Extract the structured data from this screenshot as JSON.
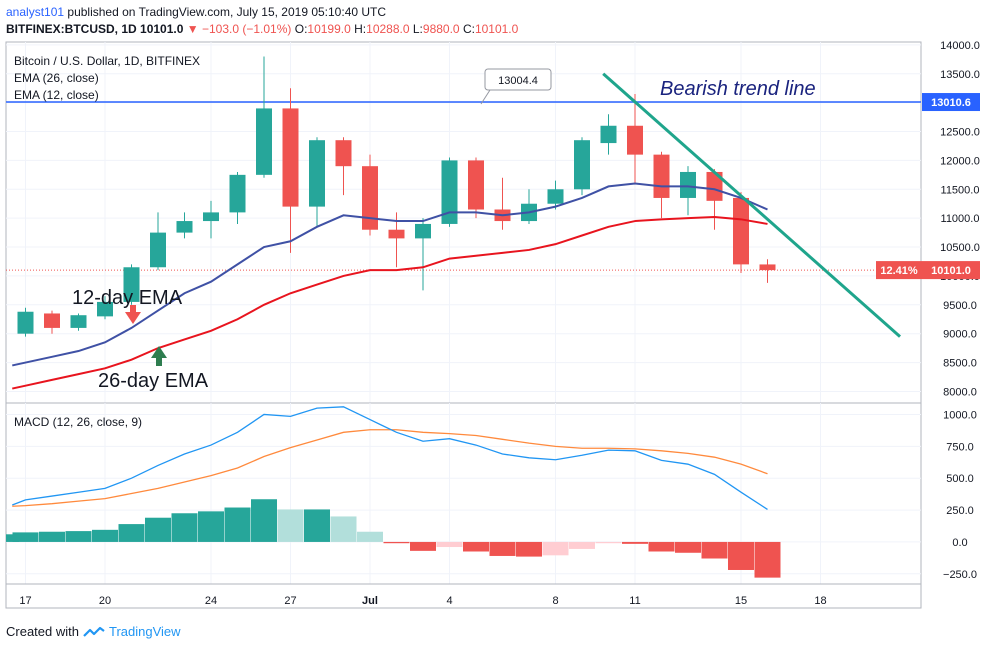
{
  "header": {
    "author": "analyst101",
    "published_text": "published on TradingView.com, July 15, 2019 05:10:40 UTC",
    "symbol": "BITFINEX:BTCUSD, 1D",
    "price": "10101.0",
    "change": "−103.0 (−1.01%)",
    "open": "10199.0",
    "high": "10288.0",
    "low": "9880.0",
    "close": "10101.0"
  },
  "legend": {
    "line1": "Bitcoin / U.S. Dollar, 1D, BITFINEX",
    "line2": "EMA (26, close)",
    "line3": "EMA (12, close)"
  },
  "macd_legend": "MACD (12, 26, close, 9)",
  "annotations": {
    "trend": "Bearish trend line",
    "ema12": "12-day EMA",
    "ema26": "26-day EMA",
    "callout": "13004.4",
    "hline_label": "13010.6",
    "pct_badge": "12.41%",
    "price_badge": "10101.0"
  },
  "footer": {
    "created_with": "Created with",
    "brand": "TradingView"
  },
  "colors": {
    "up": "#26a69a",
    "down": "#ef5350",
    "ema12": "#3f51a5",
    "ema26": "#e8141e",
    "macd": "#2196f3",
    "signal": "#ff8a3d",
    "trend": "#1fa58c",
    "hline": "#2962ff"
  },
  "chart_data": [
    {
      "type": "candlestick",
      "title": "Bitcoin / U.S. Dollar, 1D, BITFINEX",
      "x_ticks": [
        {
          "x": 17,
          "label": "17"
        },
        {
          "x": 20,
          "label": "20"
        },
        {
          "x": 24,
          "label": "24"
        },
        {
          "x": 27,
          "label": "27"
        },
        {
          "x": 30,
          "label": "Jul"
        },
        {
          "x": 33,
          "label": "4"
        },
        {
          "x": 37,
          "label": "8"
        },
        {
          "x": 40,
          "label": "11"
        },
        {
          "x": 44,
          "label": "15"
        },
        {
          "x": 47,
          "label": "18"
        }
      ],
      "y_ticks": [
        8000,
        8500,
        9000,
        9500,
        10000,
        10500,
        11000,
        11500,
        12000,
        12500,
        13000,
        13500,
        14000
      ],
      "ylim": [
        7800,
        14050
      ],
      "candles": [
        {
          "x": 17,
          "o": 9000,
          "h": 9450,
          "l": 8950,
          "c": 9380
        },
        {
          "x": 18,
          "o": 9350,
          "h": 9400,
          "l": 9000,
          "c": 9100
        },
        {
          "x": 19,
          "o": 9100,
          "h": 9350,
          "l": 9050,
          "c": 9320
        },
        {
          "x": 20,
          "o": 9300,
          "h": 9650,
          "l": 9250,
          "c": 9550
        },
        {
          "x": 21,
          "o": 9550,
          "h": 10200,
          "l": 9500,
          "c": 10150
        },
        {
          "x": 22,
          "o": 10150,
          "h": 11100,
          "l": 10100,
          "c": 10750
        },
        {
          "x": 23,
          "o": 10750,
          "h": 11100,
          "l": 10650,
          "c": 10950
        },
        {
          "x": 24,
          "o": 10950,
          "h": 11300,
          "l": 10650,
          "c": 11100
        },
        {
          "x": 25,
          "o": 11100,
          "h": 11800,
          "l": 10900,
          "c": 11750
        },
        {
          "x": 26,
          "o": 11750,
          "h": 13800,
          "l": 11700,
          "c": 12900
        },
        {
          "x": 27,
          "o": 12900,
          "h": 13250,
          "l": 10400,
          "c": 11200
        },
        {
          "x": 28,
          "o": 11200,
          "h": 12400,
          "l": 10850,
          "c": 12350
        },
        {
          "x": 29,
          "o": 12350,
          "h": 12400,
          "l": 11400,
          "c": 11900
        },
        {
          "x": 30,
          "o": 11900,
          "h": 12100,
          "l": 10700,
          "c": 10800
        },
        {
          "x": 31,
          "o": 10800,
          "h": 11100,
          "l": 10150,
          "c": 10650
        },
        {
          "x": 32,
          "o": 10650,
          "h": 11000,
          "l": 9750,
          "c": 10900
        },
        {
          "x": 33,
          "o": 10900,
          "h": 12050,
          "l": 10850,
          "c": 12000
        },
        {
          "x": 34,
          "o": 12000,
          "h": 12050,
          "l": 11000,
          "c": 11150
        },
        {
          "x": 35,
          "o": 11150,
          "h": 11700,
          "l": 10800,
          "c": 10950
        },
        {
          "x": 36,
          "o": 10950,
          "h": 11500,
          "l": 10900,
          "c": 11250
        },
        {
          "x": 37,
          "o": 11250,
          "h": 11650,
          "l": 11150,
          "c": 11500
        },
        {
          "x": 38,
          "o": 11500,
          "h": 12400,
          "l": 11400,
          "c": 12350
        },
        {
          "x": 39,
          "o": 12300,
          "h": 12800,
          "l": 12100,
          "c": 12600
        },
        {
          "x": 40,
          "o": 12600,
          "h": 13150,
          "l": 11600,
          "c": 12100
        },
        {
          "x": 41,
          "o": 12100,
          "h": 12150,
          "l": 11000,
          "c": 11350
        },
        {
          "x": 42,
          "o": 11350,
          "h": 11900,
          "l": 11050,
          "c": 11800
        },
        {
          "x": 43,
          "o": 11800,
          "h": 11850,
          "l": 10800,
          "c": 11300
        },
        {
          "x": 44,
          "o": 11350,
          "h": 11450,
          "l": 10050,
          "c": 10200
        },
        {
          "x": 45,
          "o": 10199,
          "h": 10288,
          "l": 9880,
          "c": 10101
        }
      ],
      "ema12": [
        {
          "x": 16.5,
          "y": 8450
        },
        {
          "x": 17,
          "y": 8500
        },
        {
          "x": 18,
          "y": 8600
        },
        {
          "x": 19,
          "y": 8700
        },
        {
          "x": 20,
          "y": 8850
        },
        {
          "x": 21,
          "y": 9100
        },
        {
          "x": 22,
          "y": 9400
        },
        {
          "x": 23,
          "y": 9700
        },
        {
          "x": 24,
          "y": 9900
        },
        {
          "x": 25,
          "y": 10200
        },
        {
          "x": 26,
          "y": 10500
        },
        {
          "x": 27,
          "y": 10600
        },
        {
          "x": 28,
          "y": 10850
        },
        {
          "x": 29,
          "y": 11050
        },
        {
          "x": 30,
          "y": 11000
        },
        {
          "x": 31,
          "y": 10950
        },
        {
          "x": 32,
          "y": 10950
        },
        {
          "x": 33,
          "y": 11100
        },
        {
          "x": 34,
          "y": 11100
        },
        {
          "x": 35,
          "y": 11050
        },
        {
          "x": 36,
          "y": 11100
        },
        {
          "x": 37,
          "y": 11200
        },
        {
          "x": 38,
          "y": 11350
        },
        {
          "x": 39,
          "y": 11550
        },
        {
          "x": 40,
          "y": 11600
        },
        {
          "x": 41,
          "y": 11550
        },
        {
          "x": 42,
          "y": 11550
        },
        {
          "x": 43,
          "y": 11500
        },
        {
          "x": 44,
          "y": 11350
        },
        {
          "x": 45,
          "y": 11150
        }
      ],
      "ema26": [
        {
          "x": 16.5,
          "y": 8050
        },
        {
          "x": 17,
          "y": 8100
        },
        {
          "x": 18,
          "y": 8200
        },
        {
          "x": 19,
          "y": 8300
        },
        {
          "x": 20,
          "y": 8400
        },
        {
          "x": 21,
          "y": 8550
        },
        {
          "x": 22,
          "y": 8750
        },
        {
          "x": 23,
          "y": 8900
        },
        {
          "x": 24,
          "y": 9050
        },
        {
          "x": 25,
          "y": 9250
        },
        {
          "x": 26,
          "y": 9500
        },
        {
          "x": 27,
          "y": 9700
        },
        {
          "x": 28,
          "y": 9850
        },
        {
          "x": 29,
          "y": 10000
        },
        {
          "x": 30,
          "y": 10100
        },
        {
          "x": 31,
          "y": 10100
        },
        {
          "x": 32,
          "y": 10150
        },
        {
          "x": 33,
          "y": 10300
        },
        {
          "x": 34,
          "y": 10350
        },
        {
          "x": 35,
          "y": 10400
        },
        {
          "x": 36,
          "y": 10450
        },
        {
          "x": 37,
          "y": 10550
        },
        {
          "x": 38,
          "y": 10700
        },
        {
          "x": 39,
          "y": 10850
        },
        {
          "x": 40,
          "y": 10950
        },
        {
          "x": 41,
          "y": 10980
        },
        {
          "x": 42,
          "y": 11000
        },
        {
          "x": 43,
          "y": 11020
        },
        {
          "x": 44,
          "y": 10980
        },
        {
          "x": 45,
          "y": 10900
        }
      ],
      "hline": 13010.6,
      "trend_line": [
        {
          "x": 38.8,
          "y": 13500
        },
        {
          "x": 50,
          "y": 8950
        }
      ]
    },
    {
      "type": "macd",
      "title": "MACD (12, 26, close, 9)",
      "y_ticks": [
        -250,
        0,
        250,
        500,
        750,
        1000
      ],
      "ylim": [
        -330,
        1090
      ],
      "macd": [
        {
          "x": 16.5,
          "y": 290
        },
        {
          "x": 17,
          "y": 330
        },
        {
          "x": 18,
          "y": 360
        },
        {
          "x": 19,
          "y": 390
        },
        {
          "x": 20,
          "y": 420
        },
        {
          "x": 21,
          "y": 500
        },
        {
          "x": 22,
          "y": 600
        },
        {
          "x": 23,
          "y": 690
        },
        {
          "x": 24,
          "y": 760
        },
        {
          "x": 25,
          "y": 860
        },
        {
          "x": 26,
          "y": 1000
        },
        {
          "x": 27,
          "y": 985
        },
        {
          "x": 28,
          "y": 1050
        },
        {
          "x": 29,
          "y": 1060
        },
        {
          "x": 30,
          "y": 960
        },
        {
          "x": 31,
          "y": 860
        },
        {
          "x": 32,
          "y": 790
        },
        {
          "x": 33,
          "y": 810
        },
        {
          "x": 34,
          "y": 760
        },
        {
          "x": 35,
          "y": 690
        },
        {
          "x": 36,
          "y": 660
        },
        {
          "x": 37,
          "y": 645
        },
        {
          "x": 38,
          "y": 680
        },
        {
          "x": 39,
          "y": 720
        },
        {
          "x": 40,
          "y": 715
        },
        {
          "x": 41,
          "y": 640
        },
        {
          "x": 42,
          "y": 610
        },
        {
          "x": 43,
          "y": 530
        },
        {
          "x": 44,
          "y": 390
        },
        {
          "x": 45,
          "y": 255
        }
      ],
      "signal": [
        {
          "x": 16.5,
          "y": 280
        },
        {
          "x": 17,
          "y": 285
        },
        {
          "x": 18,
          "y": 300
        },
        {
          "x": 19,
          "y": 320
        },
        {
          "x": 20,
          "y": 340
        },
        {
          "x": 21,
          "y": 380
        },
        {
          "x": 22,
          "y": 420
        },
        {
          "x": 23,
          "y": 470
        },
        {
          "x": 24,
          "y": 520
        },
        {
          "x": 25,
          "y": 580
        },
        {
          "x": 26,
          "y": 670
        },
        {
          "x": 27,
          "y": 740
        },
        {
          "x": 28,
          "y": 800
        },
        {
          "x": 29,
          "y": 860
        },
        {
          "x": 30,
          "y": 880
        },
        {
          "x": 31,
          "y": 880
        },
        {
          "x": 32,
          "y": 860
        },
        {
          "x": 33,
          "y": 850
        },
        {
          "x": 34,
          "y": 835
        },
        {
          "x": 35,
          "y": 805
        },
        {
          "x": 36,
          "y": 775
        },
        {
          "x": 37,
          "y": 750
        },
        {
          "x": 38,
          "y": 735
        },
        {
          "x": 39,
          "y": 735
        },
        {
          "x": 40,
          "y": 730
        },
        {
          "x": 41,
          "y": 715
        },
        {
          "x": 42,
          "y": 695
        },
        {
          "x": 43,
          "y": 665
        },
        {
          "x": 44,
          "y": 610
        },
        {
          "x": 45,
          "y": 535
        }
      ],
      "histogram": [
        {
          "x": 16.5,
          "y": 60
        },
        {
          "x": 17,
          "y": 75
        },
        {
          "x": 18,
          "y": 80
        },
        {
          "x": 19,
          "y": 85
        },
        {
          "x": 20,
          "y": 95
        },
        {
          "x": 21,
          "y": 140
        },
        {
          "x": 22,
          "y": 190
        },
        {
          "x": 23,
          "y": 225
        },
        {
          "x": 24,
          "y": 240
        },
        {
          "x": 25,
          "y": 270
        },
        {
          "x": 26,
          "y": 335
        },
        {
          "x": 27,
          "y": 255
        },
        {
          "x": 28,
          "y": 255
        },
        {
          "x": 29,
          "y": 200
        },
        {
          "x": 30,
          "y": 80
        },
        {
          "x": 31,
          "y": -10
        },
        {
          "x": 32,
          "y": -70
        },
        {
          "x": 33,
          "y": -40
        },
        {
          "x": 34,
          "y": -75
        },
        {
          "x": 35,
          "y": -110
        },
        {
          "x": 36,
          "y": -115
        },
        {
          "x": 37,
          "y": -105
        },
        {
          "x": 38,
          "y": -55
        },
        {
          "x": 39,
          "y": -10
        },
        {
          "x": 40,
          "y": -15
        },
        {
          "x": 41,
          "y": -75
        },
        {
          "x": 42,
          "y": -85
        },
        {
          "x": 43,
          "y": -130
        },
        {
          "x": 44,
          "y": -220
        },
        {
          "x": 45,
          "y": -280
        }
      ]
    }
  ]
}
